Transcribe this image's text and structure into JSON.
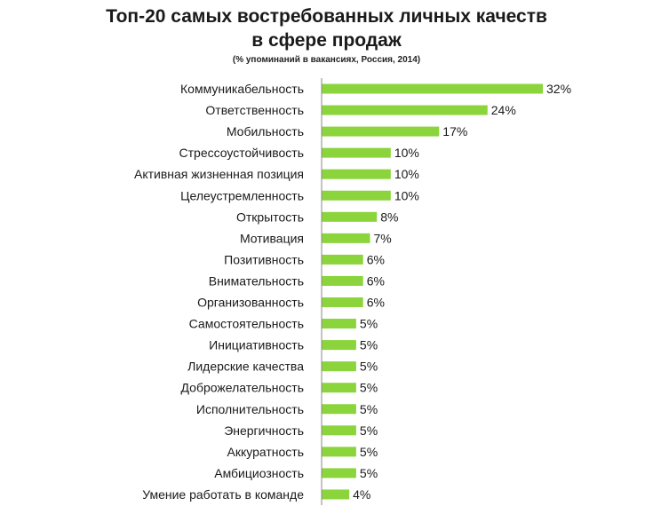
{
  "chart_data": {
    "type": "bar",
    "orientation": "horizontal",
    "title": "Топ-20 самых востребованных личных качеств в сфере продаж",
    "title_lines": [
      "Топ-20 самых востребованных личных качеств",
      "в сфере продаж"
    ],
    "subtitle": "(% упоминаний в вакансиях, Россия, 2014)",
    "xlabel": "",
    "ylabel": "",
    "xlim": [
      0,
      32
    ],
    "grid": false,
    "legend": "none",
    "bar_color": "#8bd43c",
    "categories": [
      "Коммуникабельность",
      "Ответственность",
      "Мобильность",
      "Стрессоустойчивость",
      "Активная жизненная позиция",
      "Целеустремленность",
      "Открытость",
      "Мотивация",
      "Позитивность",
      "Внимательность",
      "Организованность",
      "Самостоятельность",
      "Инициативность",
      "Лидерские качества",
      "Доброжелательность",
      "Исполнительность",
      "Энергичность",
      "Аккуратность",
      "Амбициозность",
      "Умение работать в команде"
    ],
    "values": [
      32,
      24,
      17,
      10,
      10,
      10,
      8,
      7,
      6,
      6,
      6,
      5,
      5,
      5,
      5,
      5,
      5,
      5,
      5,
      4
    ],
    "value_labels": [
      "32%",
      "24%",
      "17%",
      "10%",
      "10%",
      "10%",
      "8%",
      "7%",
      "6%",
      "6%",
      "6%",
      "5%",
      "5%",
      "5%",
      "5%",
      "5%",
      "5%",
      "5%",
      "5%",
      "4%"
    ]
  }
}
